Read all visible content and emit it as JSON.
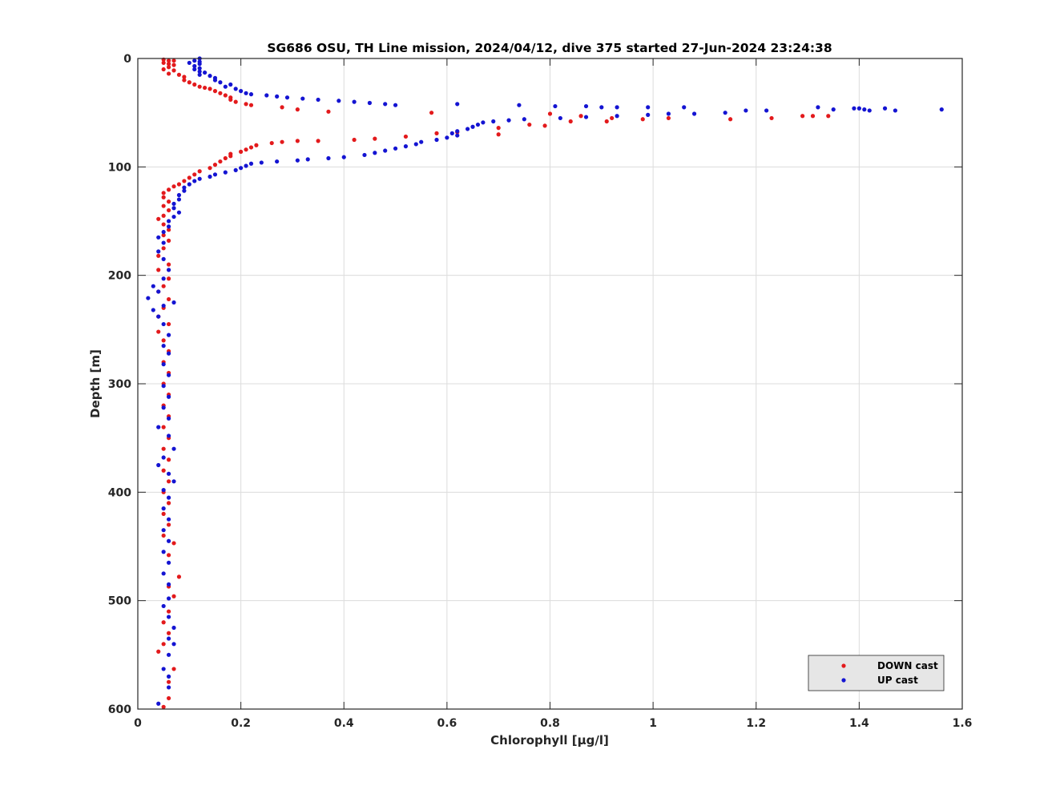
{
  "chart_data": {
    "type": "scatter",
    "title": "SG686 OSU, TH Line mission, 2024/04/12, dive 375 started 27-Jun-2024 23:24:38",
    "xlabel": "Chlorophyll [μg/l]",
    "ylabel": "Depth [m]",
    "xlim": [
      0,
      1.6
    ],
    "ylim": [
      0,
      600
    ],
    "y_reversed": true,
    "x_ticks": [
      0,
      0.2,
      0.4,
      0.6,
      0.8,
      1.0,
      1.2,
      1.4,
      1.6
    ],
    "x_tick_labels": [
      "0",
      "0.2",
      "0.4",
      "0.6",
      "0.8",
      "1",
      "1.2",
      "1.4",
      "1.6"
    ],
    "y_ticks": [
      0,
      100,
      200,
      300,
      400,
      500,
      600
    ],
    "y_tick_labels": [
      "0",
      "100",
      "200",
      "300",
      "400",
      "500",
      "600"
    ],
    "grid": true,
    "legend_position": "bottom-right",
    "series": [
      {
        "name": "DOWN cast",
        "color": "#e31a1c",
        "points": [
          [
            0.05,
            1
          ],
          [
            0.06,
            2
          ],
          [
            0.07,
            2
          ],
          [
            0.05,
            4
          ],
          [
            0.06,
            5
          ],
          [
            0.07,
            6
          ],
          [
            0.06,
            8
          ],
          [
            0.05,
            10
          ],
          [
            0.07,
            11
          ],
          [
            0.06,
            14
          ],
          [
            0.08,
            15
          ],
          [
            0.09,
            17
          ],
          [
            0.09,
            20
          ],
          [
            0.1,
            22
          ],
          [
            0.11,
            24
          ],
          [
            0.12,
            26
          ],
          [
            0.13,
            27
          ],
          [
            0.14,
            28
          ],
          [
            0.15,
            30
          ],
          [
            0.16,
            32
          ],
          [
            0.17,
            34
          ],
          [
            0.18,
            36
          ],
          [
            0.18,
            38
          ],
          [
            0.19,
            40
          ],
          [
            0.21,
            42
          ],
          [
            0.22,
            43
          ],
          [
            0.28,
            45
          ],
          [
            0.31,
            47
          ],
          [
            0.37,
            49
          ],
          [
            0.57,
            50
          ],
          [
            0.8,
            51
          ],
          [
            0.86,
            53
          ],
          [
            0.92,
            55
          ],
          [
            0.98,
            56
          ],
          [
            1.03,
            55
          ],
          [
            1.15,
            56
          ],
          [
            1.23,
            55
          ],
          [
            1.29,
            53
          ],
          [
            1.31,
            53
          ],
          [
            1.34,
            53
          ],
          [
            0.84,
            58
          ],
          [
            0.91,
            58
          ],
          [
            0.76,
            61
          ],
          [
            0.79,
            62
          ],
          [
            0.7,
            64
          ],
          [
            0.7,
            70
          ],
          [
            0.62,
            68
          ],
          [
            0.58,
            69
          ],
          [
            0.52,
            72
          ],
          [
            0.46,
            74
          ],
          [
            0.42,
            75
          ],
          [
            0.35,
            76
          ],
          [
            0.31,
            76
          ],
          [
            0.28,
            77
          ],
          [
            0.26,
            78
          ],
          [
            0.23,
            80
          ],
          [
            0.22,
            82
          ],
          [
            0.21,
            84
          ],
          [
            0.2,
            86
          ],
          [
            0.18,
            88
          ],
          [
            0.18,
            90
          ],
          [
            0.17,
            92
          ],
          [
            0.16,
            95
          ],
          [
            0.15,
            98
          ],
          [
            0.14,
            101
          ],
          [
            0.12,
            104
          ],
          [
            0.11,
            107
          ],
          [
            0.1,
            110
          ],
          [
            0.09,
            113
          ],
          [
            0.08,
            116
          ],
          [
            0.07,
            118
          ],
          [
            0.06,
            121
          ],
          [
            0.05,
            124
          ],
          [
            0.05,
            128
          ],
          [
            0.06,
            132
          ],
          [
            0.05,
            136
          ],
          [
            0.06,
            140
          ],
          [
            0.05,
            145
          ],
          [
            0.04,
            148
          ],
          [
            0.05,
            153
          ],
          [
            0.06,
            158
          ],
          [
            0.05,
            163
          ],
          [
            0.06,
            168
          ],
          [
            0.05,
            175
          ],
          [
            0.04,
            182
          ],
          [
            0.06,
            190
          ],
          [
            0.04,
            195
          ],
          [
            0.06,
            203
          ],
          [
            0.05,
            210
          ],
          [
            0.04,
            215
          ],
          [
            0.06,
            222
          ],
          [
            0.05,
            230
          ],
          [
            0.04,
            238
          ],
          [
            0.06,
            245
          ],
          [
            0.04,
            252
          ],
          [
            0.05,
            260
          ],
          [
            0.06,
            270
          ],
          [
            0.05,
            280
          ],
          [
            0.06,
            290
          ],
          [
            0.05,
            300
          ],
          [
            0.06,
            310
          ],
          [
            0.05,
            320
          ],
          [
            0.06,
            330
          ],
          [
            0.05,
            340
          ],
          [
            0.06,
            350
          ],
          [
            0.05,
            360
          ],
          [
            0.06,
            370
          ],
          [
            0.05,
            380
          ],
          [
            0.06,
            390
          ],
          [
            0.05,
            400
          ],
          [
            0.06,
            410
          ],
          [
            0.05,
            420
          ],
          [
            0.06,
            430
          ],
          [
            0.05,
            440
          ],
          [
            0.07,
            447
          ],
          [
            0.06,
            458
          ],
          [
            0.08,
            478
          ],
          [
            0.06,
            487
          ],
          [
            0.07,
            496
          ],
          [
            0.06,
            510
          ],
          [
            0.05,
            520
          ],
          [
            0.06,
            530
          ],
          [
            0.04,
            547
          ],
          [
            0.05,
            540
          ],
          [
            0.07,
            563
          ],
          [
            0.06,
            575
          ],
          [
            0.06,
            590
          ],
          [
            0.05,
            598
          ]
        ]
      },
      {
        "name": "UP cast",
        "color": "#1414d2",
        "points": [
          [
            0.12,
            0
          ],
          [
            0.11,
            2
          ],
          [
            0.12,
            3
          ],
          [
            0.1,
            4
          ],
          [
            0.12,
            5
          ],
          [
            0.11,
            7
          ],
          [
            0.12,
            9
          ],
          [
            0.11,
            10
          ],
          [
            0.12,
            12
          ],
          [
            0.13,
            13
          ],
          [
            0.12,
            15
          ],
          [
            0.14,
            16
          ],
          [
            0.15,
            18
          ],
          [
            0.15,
            20
          ],
          [
            0.16,
            22
          ],
          [
            0.18,
            24
          ],
          [
            0.17,
            26
          ],
          [
            0.19,
            28
          ],
          [
            0.2,
            30
          ],
          [
            0.21,
            32
          ],
          [
            0.22,
            33
          ],
          [
            0.25,
            34
          ],
          [
            0.27,
            35
          ],
          [
            0.29,
            36
          ],
          [
            0.32,
            37
          ],
          [
            0.35,
            38
          ],
          [
            0.39,
            39
          ],
          [
            0.42,
            40
          ],
          [
            0.45,
            41
          ],
          [
            0.48,
            42
          ],
          [
            0.5,
            43
          ],
          [
            0.62,
            42
          ],
          [
            0.74,
            43
          ],
          [
            0.81,
            44
          ],
          [
            0.87,
            44
          ],
          [
            0.9,
            45
          ],
          [
            0.93,
            45
          ],
          [
            0.99,
            45
          ],
          [
            1.06,
            45
          ],
          [
            1.32,
            45
          ],
          [
            1.35,
            47
          ],
          [
            1.4,
            46
          ],
          [
            1.42,
            48
          ],
          [
            1.45,
            46
          ],
          [
            1.47,
            48
          ],
          [
            1.56,
            47
          ],
          [
            1.41,
            47
          ],
          [
            1.39,
            46
          ],
          [
            1.18,
            48
          ],
          [
            1.22,
            48
          ],
          [
            1.14,
            50
          ],
          [
            1.08,
            51
          ],
          [
            1.03,
            51
          ],
          [
            0.99,
            52
          ],
          [
            0.93,
            53
          ],
          [
            0.87,
            54
          ],
          [
            0.82,
            55
          ],
          [
            0.75,
            56
          ],
          [
            0.72,
            57
          ],
          [
            0.69,
            58
          ],
          [
            0.67,
            59
          ],
          [
            0.66,
            61
          ],
          [
            0.65,
            63
          ],
          [
            0.64,
            65
          ],
          [
            0.62,
            67
          ],
          [
            0.61,
            69
          ],
          [
            0.62,
            71
          ],
          [
            0.6,
            73
          ],
          [
            0.58,
            75
          ],
          [
            0.55,
            77
          ],
          [
            0.54,
            79
          ],
          [
            0.52,
            81
          ],
          [
            0.5,
            83
          ],
          [
            0.48,
            85
          ],
          [
            0.46,
            87
          ],
          [
            0.44,
            89
          ],
          [
            0.4,
            91
          ],
          [
            0.37,
            92
          ],
          [
            0.33,
            93
          ],
          [
            0.31,
            94
          ],
          [
            0.27,
            95
          ],
          [
            0.24,
            96
          ],
          [
            0.22,
            97
          ],
          [
            0.21,
            99
          ],
          [
            0.2,
            101
          ],
          [
            0.19,
            103
          ],
          [
            0.17,
            105
          ],
          [
            0.15,
            107
          ],
          [
            0.14,
            109
          ],
          [
            0.12,
            111
          ],
          [
            0.11,
            113
          ],
          [
            0.1,
            116
          ],
          [
            0.09,
            119
          ],
          [
            0.09,
            122
          ],
          [
            0.08,
            126
          ],
          [
            0.08,
            130
          ],
          [
            0.07,
            134
          ],
          [
            0.07,
            138
          ],
          [
            0.08,
            142
          ],
          [
            0.07,
            146
          ],
          [
            0.06,
            150
          ],
          [
            0.06,
            155
          ],
          [
            0.05,
            160
          ],
          [
            0.04,
            165
          ],
          [
            0.05,
            170
          ],
          [
            0.04,
            178
          ],
          [
            0.05,
            185
          ],
          [
            0.06,
            195
          ],
          [
            0.05,
            203
          ],
          [
            0.03,
            210
          ],
          [
            0.04,
            215
          ],
          [
            0.02,
            221
          ],
          [
            0.07,
            225
          ],
          [
            0.05,
            228
          ],
          [
            0.03,
            232
          ],
          [
            0.04,
            238
          ],
          [
            0.05,
            245
          ],
          [
            0.06,
            255
          ],
          [
            0.05,
            265
          ],
          [
            0.06,
            272
          ],
          [
            0.05,
            282
          ],
          [
            0.06,
            292
          ],
          [
            0.05,
            302
          ],
          [
            0.06,
            312
          ],
          [
            0.05,
            322
          ],
          [
            0.06,
            332
          ],
          [
            0.04,
            340
          ],
          [
            0.06,
            348
          ],
          [
            0.07,
            360
          ],
          [
            0.05,
            368
          ],
          [
            0.04,
            375
          ],
          [
            0.06,
            383
          ],
          [
            0.07,
            390
          ],
          [
            0.05,
            398
          ],
          [
            0.06,
            405
          ],
          [
            0.05,
            415
          ],
          [
            0.06,
            425
          ],
          [
            0.05,
            435
          ],
          [
            0.06,
            445
          ],
          [
            0.05,
            455
          ],
          [
            0.06,
            465
          ],
          [
            0.05,
            475
          ],
          [
            0.06,
            485
          ],
          [
            0.06,
            498
          ],
          [
            0.05,
            505
          ],
          [
            0.06,
            515
          ],
          [
            0.07,
            525
          ],
          [
            0.06,
            535
          ],
          [
            0.07,
            540
          ],
          [
            0.06,
            550
          ],
          [
            0.05,
            563
          ],
          [
            0.06,
            570
          ],
          [
            0.06,
            580
          ],
          [
            0.04,
            595
          ]
        ]
      }
    ]
  }
}
